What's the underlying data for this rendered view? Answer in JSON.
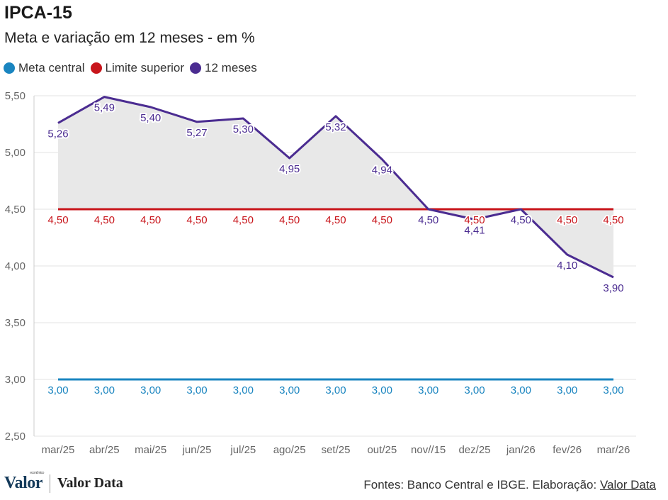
{
  "header": {
    "title": "IPCA-15",
    "subtitle": "Meta e variação em 12 meses - em %"
  },
  "legend": [
    {
      "label": "Meta central",
      "color": "#1a85c0"
    },
    {
      "label": "Limite superior",
      "color": "#c8151b"
    },
    {
      "label": "12 meses",
      "color": "#4b2c91"
    }
  ],
  "chart_data": {
    "type": "line",
    "categories": [
      "mar/25",
      "abr/25",
      "mai/25",
      "jun/25",
      "jul/25",
      "ago/25",
      "set/25",
      "out/25",
      "nov//15",
      "dez/25",
      "jan/26",
      "fev/26",
      "mar/26"
    ],
    "y_ticks": [
      "2,50",
      "3,00",
      "3,50",
      "4,00",
      "4,50",
      "5,00",
      "5,50"
    ],
    "ylim": [
      2.5,
      5.5
    ],
    "grid": true,
    "shaded_area_between": [
      "12 meses",
      "Limite superior"
    ],
    "series": [
      {
        "name": "Meta central",
        "color": "#1a85c0",
        "values": [
          3.0,
          3.0,
          3.0,
          3.0,
          3.0,
          3.0,
          3.0,
          3.0,
          3.0,
          3.0,
          3.0,
          3.0,
          3.0
        ],
        "labels": [
          "3,00",
          "3,00",
          "3,00",
          "3,00",
          "3,00",
          "3,00",
          "3,00",
          "3,00",
          "3,00",
          "3,00",
          "3,00",
          "3,00",
          "3,00"
        ]
      },
      {
        "name": "Limite superior",
        "color": "#c8151b",
        "values": [
          4.5,
          4.5,
          4.5,
          4.5,
          4.5,
          4.5,
          4.5,
          4.5,
          4.5,
          4.5,
          4.5,
          4.5,
          4.5
        ],
        "labels": [
          "4,50",
          "4,50",
          "4,50",
          "4,50",
          "4,50",
          "4,50",
          "4,50",
          "4,50",
          "4,50",
          "4,50",
          "4,50",
          "4,50",
          "4,50"
        ]
      },
      {
        "name": "12 meses",
        "color": "#4b2c91",
        "values": [
          5.26,
          5.49,
          5.4,
          5.27,
          5.3,
          4.95,
          5.32,
          4.94,
          4.5,
          4.41,
          4.5,
          4.1,
          3.9
        ],
        "labels": [
          "5,26",
          "5,49",
          "5,40",
          "5,27",
          "5,30",
          "4,95",
          "5,32",
          "4,94",
          "4,50",
          "4,41",
          "4,50",
          "4,10",
          "3,90"
        ]
      }
    ]
  },
  "footer": {
    "logo_text": "Valor",
    "logo_small_text": "econômico",
    "brand_text": "Valor Data",
    "source_prefix": "Fontes: Banco Central e IBGE. Elaboração: ",
    "source_link": "Valor Data"
  }
}
